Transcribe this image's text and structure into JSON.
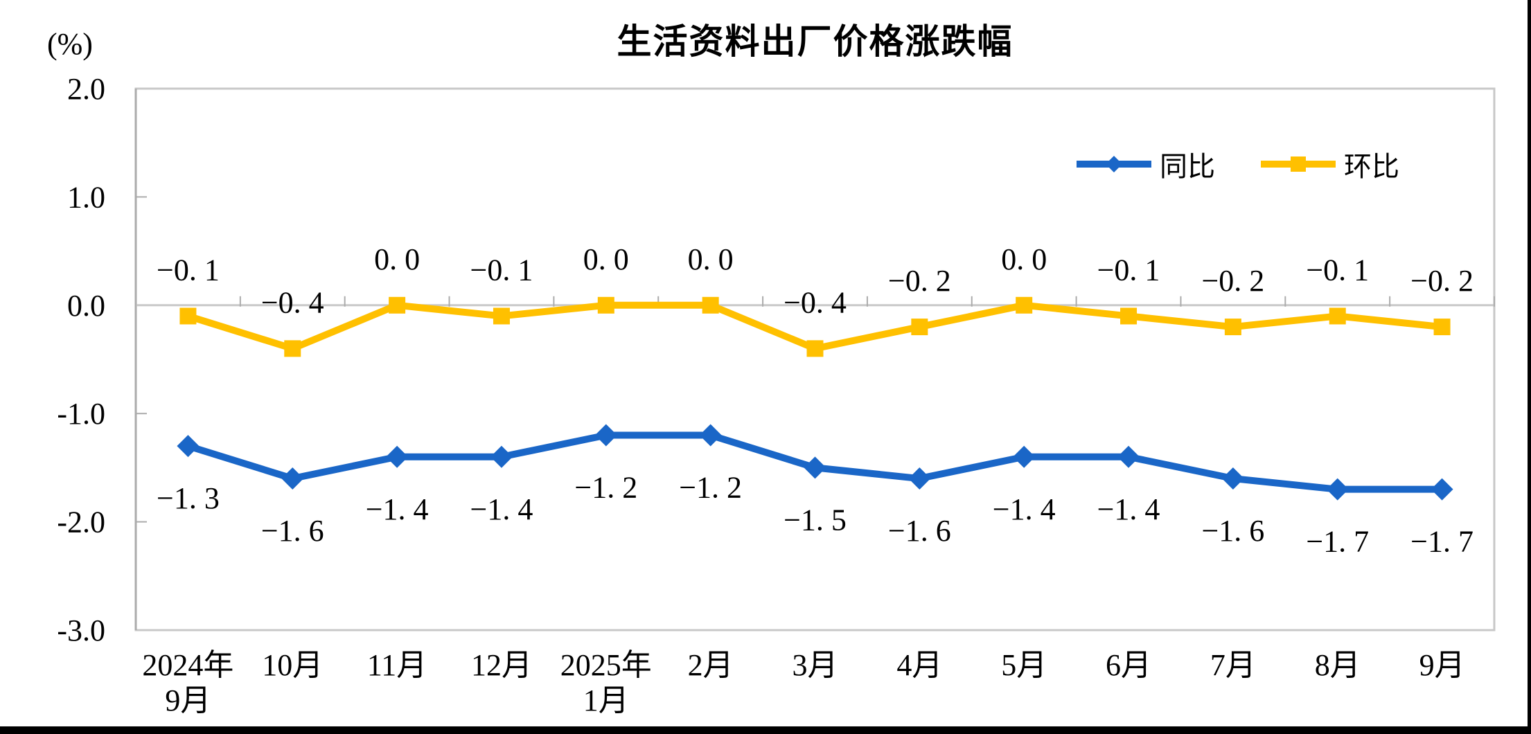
{
  "chart_data": {
    "type": "line",
    "title": "生活资料出厂价格涨跌幅",
    "unit_label": "(%)",
    "categories": [
      [
        "2024年",
        "9月"
      ],
      [
        "10月"
      ],
      [
        "11月"
      ],
      [
        "12月"
      ],
      [
        "2025年",
        "1月"
      ],
      [
        "2月"
      ],
      [
        "3月"
      ],
      [
        "4月"
      ],
      [
        "5月"
      ],
      [
        "6月"
      ],
      [
        "7月"
      ],
      [
        "8月"
      ],
      [
        "9月"
      ]
    ],
    "series": [
      {
        "id": "yoy",
        "name": "同比",
        "marker": "diamond",
        "color": "#1A66C7",
        "label_position": "below",
        "values": [
          -1.3,
          -1.6,
          -1.4,
          -1.4,
          -1.2,
          -1.2,
          -1.5,
          -1.6,
          -1.4,
          -1.4,
          -1.6,
          -1.7,
          -1.7
        ]
      },
      {
        "id": "mom",
        "name": "环比",
        "marker": "square",
        "color": "#FFC000",
        "label_position": "above",
        "values": [
          -0.1,
          -0.4,
          0.0,
          -0.1,
          0.0,
          0.0,
          -0.4,
          -0.2,
          0.0,
          -0.1,
          -0.2,
          -0.1,
          -0.2
        ]
      }
    ],
    "y_axis": {
      "min": -3.0,
      "max": 2.0,
      "tick_step": 1.0,
      "ticks": [
        2.0,
        1.0,
        0.0,
        -1.0,
        -2.0,
        -3.0
      ],
      "tick_labels": [
        "2.0",
        "1.0",
        "0.0",
        "-1.0",
        "-2.0",
        "-3.0"
      ]
    },
    "grid": false,
    "legend_position": "top-right",
    "colors": {
      "plot_border": "#C8C8C8",
      "zero_line": "#C8C8C8",
      "axis_line": "#ABABAB",
      "text": "#000000"
    }
  }
}
